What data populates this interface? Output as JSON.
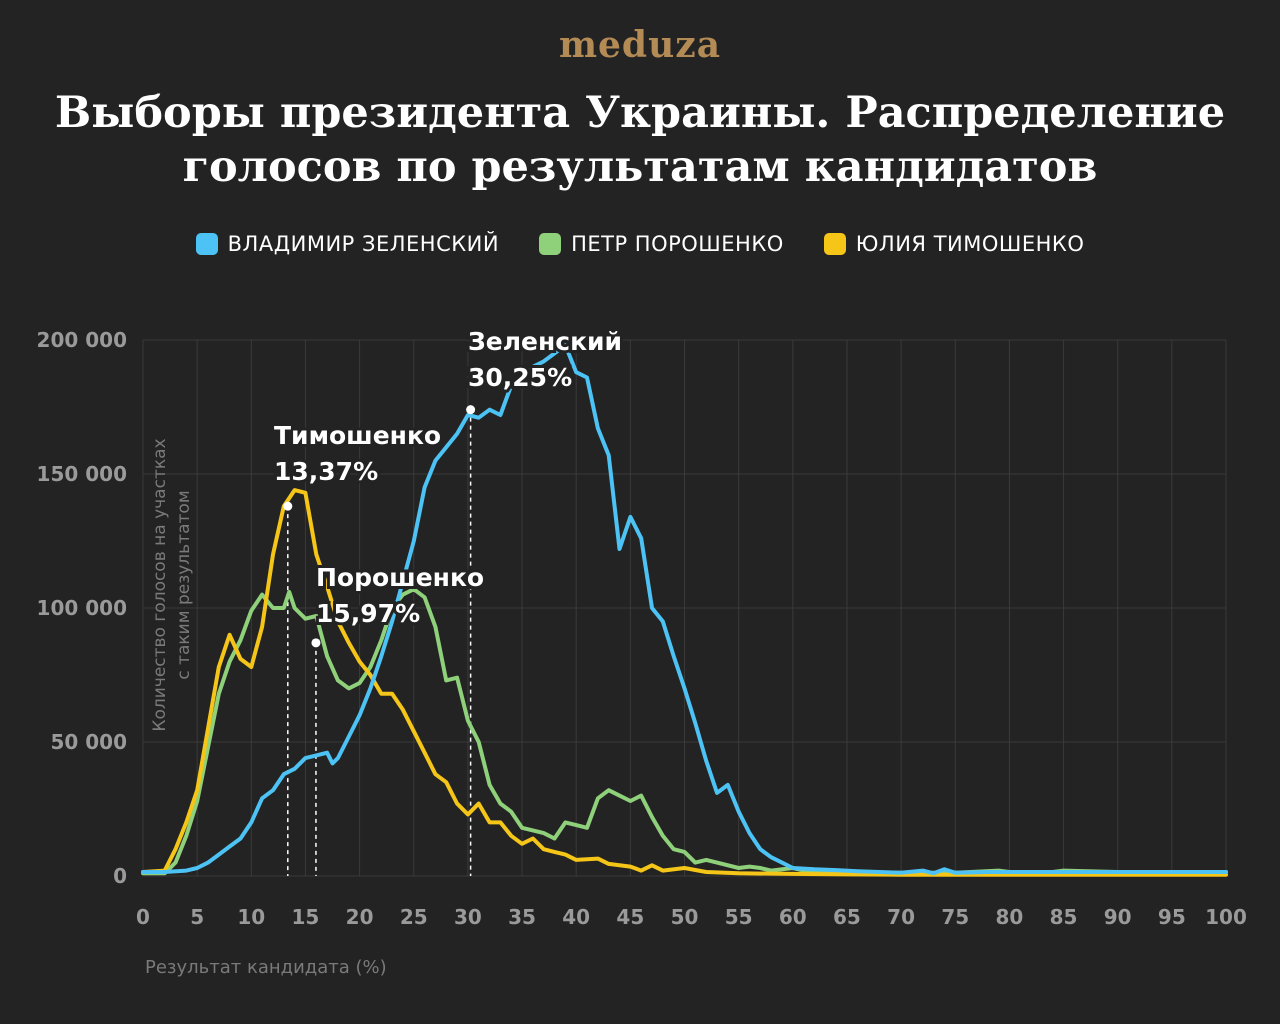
{
  "logo": "meduza",
  "chart_data": {
    "type": "line",
    "title": "Выборы президента Украины. Распределение голосов по результатам кандидатов",
    "xlabel": "Результат кандидата (%)",
    "ylabel": "Количество голосов на участках с таким результатом",
    "xlim": [
      0,
      100
    ],
    "ylim": [
      0,
      200000
    ],
    "xticks": [
      "0",
      "5",
      "10",
      "15",
      "20",
      "25",
      "30",
      "35",
      "40",
      "45",
      "50",
      "55",
      "60",
      "65",
      "70",
      "75",
      "80",
      "85",
      "90",
      "95",
      "100"
    ],
    "yticks": [
      "0",
      "50 000",
      "100 000",
      "150 000",
      "200 000"
    ],
    "legend_placement": "top-center",
    "grid": true,
    "series": [
      {
        "name": "ВЛАДИМИР ЗЕЛЕНСКИЙ",
        "color": "#4cc3f4",
        "points": [
          [
            0,
            1500
          ],
          [
            2,
            1500
          ],
          [
            4,
            2000
          ],
          [
            5,
            3000
          ],
          [
            6,
            5000
          ],
          [
            7,
            8000
          ],
          [
            8,
            11000
          ],
          [
            9,
            14000
          ],
          [
            10,
            20000
          ],
          [
            11,
            29000
          ],
          [
            12,
            32000
          ],
          [
            13,
            38000
          ],
          [
            14,
            40000
          ],
          [
            15,
            44000
          ],
          [
            16,
            45000
          ],
          [
            17,
            46000
          ],
          [
            17.5,
            42000
          ],
          [
            18,
            44000
          ],
          [
            19,
            52000
          ],
          [
            20,
            60000
          ],
          [
            21,
            70000
          ],
          [
            22,
            82000
          ],
          [
            23,
            95000
          ],
          [
            24,
            110000
          ],
          [
            25,
            125000
          ],
          [
            26,
            145000
          ],
          [
            27,
            155000
          ],
          [
            28,
            160000
          ],
          [
            29,
            165000
          ],
          [
            30,
            172000
          ],
          [
            31,
            171000
          ],
          [
            32,
            174000
          ],
          [
            33,
            172000
          ],
          [
            34,
            183000
          ],
          [
            35,
            185000
          ],
          [
            36,
            190000
          ],
          [
            37,
            192000
          ],
          [
            38,
            195000
          ],
          [
            39,
            198000
          ],
          [
            40,
            188000
          ],
          [
            41,
            186000
          ],
          [
            42,
            167000
          ],
          [
            43,
            157000
          ],
          [
            44,
            122000
          ],
          [
            45,
            134000
          ],
          [
            46,
            126000
          ],
          [
            47,
            100000
          ],
          [
            48,
            95000
          ],
          [
            49,
            82000
          ],
          [
            50,
            70000
          ],
          [
            51,
            57000
          ],
          [
            52,
            43000
          ],
          [
            53,
            31000
          ],
          [
            54,
            34000
          ],
          [
            55,
            24000
          ],
          [
            56,
            16000
          ],
          [
            57,
            10000
          ],
          [
            58,
            7000
          ],
          [
            59,
            5000
          ],
          [
            60,
            3000
          ],
          [
            62,
            2500
          ],
          [
            64,
            2200
          ],
          [
            66,
            1800
          ],
          [
            68,
            1500
          ],
          [
            70,
            1200
          ],
          [
            72,
            2000
          ],
          [
            73,
            1000
          ],
          [
            74,
            2500
          ],
          [
            75,
            1200
          ],
          [
            78,
            1500
          ],
          [
            80,
            1500
          ],
          [
            85,
            1500
          ],
          [
            90,
            1500
          ],
          [
            95,
            1500
          ],
          [
            100,
            1500
          ]
        ]
      },
      {
        "name": "ПЕТР ПОРОШЕНКО",
        "color": "#8fd07a",
        "points": [
          [
            0,
            1000
          ],
          [
            2,
            1000
          ],
          [
            3,
            5000
          ],
          [
            4,
            15000
          ],
          [
            5,
            28000
          ],
          [
            6,
            48000
          ],
          [
            7,
            68000
          ],
          [
            8,
            80000
          ],
          [
            9,
            88000
          ],
          [
            10,
            99000
          ],
          [
            11,
            105000
          ],
          [
            12,
            100000
          ],
          [
            13,
            100000
          ],
          [
            13.5,
            106000
          ],
          [
            14,
            100000
          ],
          [
            15,
            96000
          ],
          [
            16,
            97000
          ],
          [
            17,
            82000
          ],
          [
            18,
            73000
          ],
          [
            19,
            70000
          ],
          [
            20,
            72000
          ],
          [
            21,
            78000
          ],
          [
            22,
            88000
          ],
          [
            23,
            100000
          ],
          [
            24,
            105000
          ],
          [
            25,
            107000
          ],
          [
            26,
            104000
          ],
          [
            27,
            93000
          ],
          [
            28,
            73000
          ],
          [
            29,
            74000
          ],
          [
            30,
            58000
          ],
          [
            31,
            50000
          ],
          [
            32,
            34000
          ],
          [
            33,
            27000
          ],
          [
            34,
            24000
          ],
          [
            35,
            18000
          ],
          [
            36,
            17000
          ],
          [
            37,
            16000
          ],
          [
            38,
            14000
          ],
          [
            39,
            20000
          ],
          [
            40,
            19000
          ],
          [
            41,
            18000
          ],
          [
            42,
            29000
          ],
          [
            43,
            32000
          ],
          [
            44,
            30000
          ],
          [
            45,
            28000
          ],
          [
            46,
            30000
          ],
          [
            47,
            22000
          ],
          [
            48,
            15000
          ],
          [
            49,
            10000
          ],
          [
            50,
            9000
          ],
          [
            51,
            5000
          ],
          [
            52,
            6000
          ],
          [
            53,
            5000
          ],
          [
            55,
            3000
          ],
          [
            56,
            3500
          ],
          [
            57,
            3000
          ],
          [
            58,
            2000
          ],
          [
            60,
            3000
          ],
          [
            61,
            2000
          ],
          [
            63,
            1500
          ],
          [
            65,
            1500
          ],
          [
            70,
            1200
          ],
          [
            75,
            1200
          ],
          [
            79,
            2000
          ],
          [
            80,
            1500
          ],
          [
            84,
            1500
          ],
          [
            85,
            2000
          ],
          [
            90,
            1500
          ],
          [
            95,
            1500
          ],
          [
            100,
            1500
          ]
        ]
      },
      {
        "name": "ЮЛИЯ ТИМОШЕНКО",
        "color": "#f5c518",
        "points": [
          [
            0,
            1500
          ],
          [
            2,
            2000
          ],
          [
            3,
            10000
          ],
          [
            4,
            20000
          ],
          [
            5,
            32000
          ],
          [
            6,
            55000
          ],
          [
            7,
            78000
          ],
          [
            8,
            90000
          ],
          [
            9,
            81000
          ],
          [
            10,
            78000
          ],
          [
            11,
            93000
          ],
          [
            12,
            120000
          ],
          [
            13,
            138000
          ],
          [
            14,
            144000
          ],
          [
            15,
            143000
          ],
          [
            16,
            120000
          ],
          [
            17,
            108000
          ],
          [
            18,
            95000
          ],
          [
            19,
            87000
          ],
          [
            20,
            80000
          ],
          [
            21,
            75000
          ],
          [
            22,
            68000
          ],
          [
            23,
            68000
          ],
          [
            24,
            62000
          ],
          [
            25,
            54000
          ],
          [
            26,
            46000
          ],
          [
            27,
            38000
          ],
          [
            28,
            35000
          ],
          [
            29,
            27000
          ],
          [
            30,
            23000
          ],
          [
            31,
            27000
          ],
          [
            32,
            20000
          ],
          [
            33,
            20000
          ],
          [
            34,
            15000
          ],
          [
            35,
            12000
          ],
          [
            36,
            14000
          ],
          [
            37,
            10000
          ],
          [
            38,
            9000
          ],
          [
            39,
            8000
          ],
          [
            40,
            6000
          ],
          [
            42,
            6500
          ],
          [
            43,
            4500
          ],
          [
            45,
            3500
          ],
          [
            46,
            2000
          ],
          [
            47,
            4000
          ],
          [
            48,
            2000
          ],
          [
            50,
            3000
          ],
          [
            52,
            1500
          ],
          [
            55,
            1000
          ],
          [
            60,
            800
          ],
          [
            65,
            600
          ],
          [
            70,
            500
          ],
          [
            80,
            500
          ],
          [
            90,
            500
          ],
          [
            100,
            500
          ]
        ]
      }
    ],
    "annotations": [
      {
        "series": "ЮЛИЯ ТИМОШЕНКО",
        "name": "Тимошенко",
        "value": "13,37%",
        "x": 13.37,
        "y": 138000
      },
      {
        "series": "ПЕТР ПОРОШЕНКО",
        "name": "Порошенко",
        "value": "15,97%",
        "x": 15.97,
        "y": 87000
      },
      {
        "series": "ВЛАДИМИР ЗЕЛЕНСКИЙ",
        "name": "Зеленский",
        "value": "30,25%",
        "x": 30.25,
        "y": 174000
      }
    ]
  }
}
